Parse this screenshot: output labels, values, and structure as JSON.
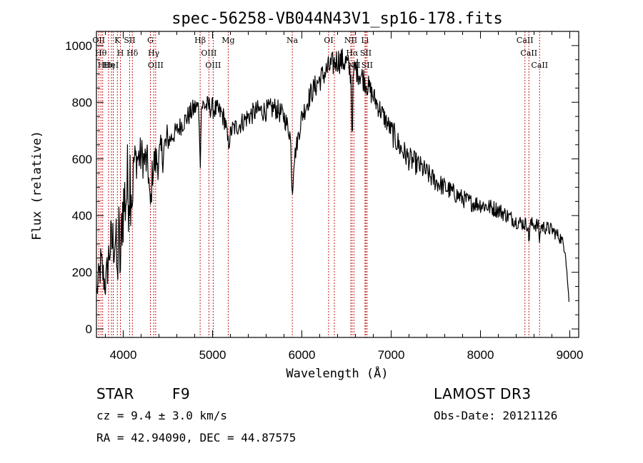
{
  "chart_data": {
    "type": "line",
    "title": "spec-56258-VB044N43V1_sp16-178.fits",
    "xlabel": "Wavelength (Å)",
    "ylabel": "Flux (relative)",
    "xlim": [
      3700,
      9100
    ],
    "ylim": [
      -30,
      1050
    ],
    "xticks": [
      4000,
      5000,
      6000,
      7000,
      8000,
      9000
    ],
    "yticks": [
      0,
      200,
      400,
      600,
      800,
      1000
    ],
    "continuum": {
      "x": [
        3700,
        3750,
        3800,
        3850,
        3900,
        3950,
        4000,
        4050,
        4100,
        4200,
        4300,
        4400,
        4500,
        4600,
        4700,
        4800,
        4900,
        5000,
        5100,
        5200,
        5300,
        5400,
        5500,
        5600,
        5700,
        5800,
        5880,
        5920,
        6000,
        6100,
        6200,
        6300,
        6400,
        6500,
        6560,
        6600,
        6700,
        6800,
        6900,
        7000,
        7100,
        7200,
        7300,
        7400,
        7500,
        7600,
        7700,
        7800,
        7900,
        8000,
        8100,
        8200,
        8300,
        8400,
        8500,
        8600,
        8700,
        8800,
        8900,
        8950,
        9000
      ],
      "flux": [
        120,
        230,
        150,
        290,
        310,
        380,
        430,
        500,
        590,
        610,
        570,
        600,
        660,
        700,
        740,
        780,
        790,
        780,
        760,
        700,
        720,
        750,
        770,
        770,
        780,
        750,
        680,
        610,
        750,
        830,
        880,
        920,
        950,
        940,
        890,
        920,
        880,
        820,
        760,
        700,
        640,
        600,
        580,
        550,
        520,
        500,
        480,
        460,
        445,
        440,
        430,
        420,
        400,
        380,
        370,
        370,
        360,
        350,
        320,
        280,
        60
      ]
    },
    "features": [
      {
        "wavelength": 3726,
        "label": "OII"
      },
      {
        "wavelength": 3750,
        "label": "Hθ"
      },
      {
        "wavelength": 3770,
        "label": "Hι"
      },
      {
        "wavelength": 3835,
        "label": "Hη"
      },
      {
        "wavelength": 3868,
        "label": "HeI"
      },
      {
        "wavelength": 3889,
        "label": ""
      },
      {
        "wavelength": 3934,
        "label": "K"
      },
      {
        "wavelength": 3968,
        "label": "H"
      },
      {
        "wavelength": 4072,
        "label": "SII"
      },
      {
        "wavelength": 4102,
        "label": "Hδ"
      },
      {
        "wavelength": 4304,
        "label": "G"
      },
      {
        "wavelength": 4341,
        "label": "Hγ"
      },
      {
        "wavelength": 4363,
        "label": "OIII"
      },
      {
        "wavelength": 4861,
        "label": "Hβ"
      },
      {
        "wavelength": 4959,
        "label": "OIII"
      },
      {
        "wavelength": 5007,
        "label": "OIII"
      },
      {
        "wavelength": 5175,
        "label": "Mg"
      },
      {
        "wavelength": 5893,
        "label": "Na"
      },
      {
        "wavelength": 6300,
        "label": "OI"
      },
      {
        "wavelength": 6364,
        "label": ""
      },
      {
        "wavelength": 6548,
        "label": "NII"
      },
      {
        "wavelength": 6563,
        "label": "Hα"
      },
      {
        "wavelength": 6583,
        "label": "NII"
      },
      {
        "wavelength": 6707,
        "label": "Li"
      },
      {
        "wavelength": 6716,
        "label": "SII"
      },
      {
        "wavelength": 6731,
        "label": "SII"
      },
      {
        "wavelength": 8498,
        "label": "CaII"
      },
      {
        "wavelength": 8542,
        "label": "CaII"
      },
      {
        "wavelength": 8662,
        "label": "CaII"
      }
    ]
  },
  "info": {
    "object_class": "STAR",
    "subclass": "F9",
    "survey": "LAMOST DR3",
    "redshift_text": "cz = 9.4 ± 3.0 km/s",
    "obs_date": "Obs-Date: 20121126",
    "coords": "RA =  42.94090, DEC =  44.87575"
  }
}
